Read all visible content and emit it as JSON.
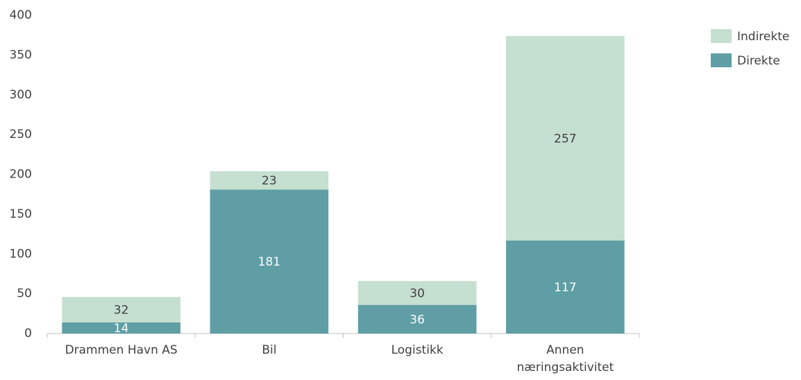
{
  "chart_data": {
    "type": "stacked_bar",
    "categories": [
      "Drammen Havn AS",
      "Bil",
      "Logistikk",
      "Annen næringsaktivitet"
    ],
    "series": [
      {
        "name": "Direkte",
        "color": "#5f9ea5",
        "values": [
          14,
          181,
          36,
          117
        ]
      },
      {
        "name": "Indirekte",
        "color": "#c5dfd0",
        "values": [
          32,
          23,
          30,
          257
        ]
      }
    ],
    "ylim": [
      0,
      400
    ],
    "yticks": [
      0,
      50,
      100,
      150,
      200,
      250,
      300,
      350,
      400
    ],
    "grid": false,
    "legend": "top-right"
  }
}
